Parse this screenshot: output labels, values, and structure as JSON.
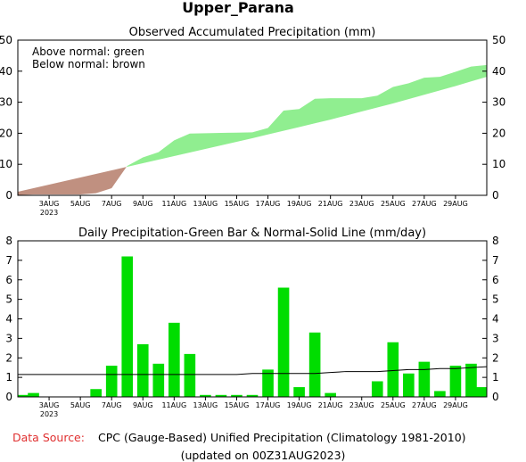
{
  "page_title": "Upper_Parana",
  "footer": {
    "source_label": "Data Source:",
    "source_text": "CPC (Gauge-Based) Unified Precipitation (Climatology 1981-2010)",
    "updated": "(updated on 00Z31AUG2023)",
    "source_label_color": "#e03030"
  },
  "colors": {
    "above_normal": "#90ee90",
    "below_normal": "#c09080",
    "bar": "#00dd00",
    "normal_line": "#000000"
  },
  "chart_data": [
    {
      "type": "area",
      "title": "Observed Accumulated Precipitation (mm)",
      "legend": [
        "Above normal: green",
        "Below normal: brown"
      ],
      "legend_position": "top-left",
      "ylim": [
        0,
        50
      ],
      "yticks": [
        0,
        10,
        20,
        30,
        40,
        50
      ],
      "xlim": [
        1,
        31
      ],
      "xticks": [
        {
          "x": 3,
          "label": "3AUG"
        },
        {
          "x": 5,
          "label": "5AUG"
        },
        {
          "x": 7,
          "label": "7AUG"
        },
        {
          "x": 9,
          "label": "9AUG"
        },
        {
          "x": 11,
          "label": "11AUG"
        },
        {
          "x": 13,
          "label": "13AUG"
        },
        {
          "x": 15,
          "label": "15AUG"
        },
        {
          "x": 17,
          "label": "17AUG"
        },
        {
          "x": 19,
          "label": "19AUG"
        },
        {
          "x": 21,
          "label": "21AUG"
        },
        {
          "x": 23,
          "label": "23AUG"
        },
        {
          "x": 25,
          "label": "25AUG"
        },
        {
          "x": 27,
          "label": "27AUG"
        },
        {
          "x": 29,
          "label": "29AUG"
        }
      ],
      "year_label": "2023",
      "x": [
        1,
        2,
        3,
        4,
        5,
        6,
        7,
        8,
        9,
        10,
        11,
        12,
        13,
        14,
        15,
        16,
        17,
        18,
        19,
        20,
        21,
        22,
        23,
        24,
        25,
        26,
        27,
        28,
        29,
        30,
        31
      ],
      "observed": [
        0.1,
        0.3,
        0.3,
        0.3,
        0.3,
        0.7,
        2.3,
        9.5,
        12.2,
        13.9,
        17.7,
        19.9,
        20.0,
        20.1,
        20.2,
        20.3,
        21.7,
        27.3,
        27.8,
        31.1,
        31.3,
        31.3,
        31.3,
        32.1,
        34.9,
        36.1,
        37.9,
        38.2,
        39.8,
        41.5,
        42.0
      ],
      "normal": [
        1.15,
        2.3,
        3.45,
        4.6,
        5.75,
        6.9,
        8.05,
        9.2,
        10.35,
        11.5,
        12.65,
        13.8,
        14.95,
        16.1,
        17.25,
        18.4,
        19.6,
        20.8,
        22.0,
        23.2,
        24.4,
        25.7,
        27.0,
        28.3,
        29.6,
        31.0,
        32.4,
        33.8,
        35.2,
        36.7,
        38.2
      ]
    },
    {
      "type": "bar",
      "title": "Daily Precipitation-Green Bar & Normal-Solid Line (mm/day)",
      "ylim": [
        0,
        8
      ],
      "yticks": [
        0,
        1,
        2,
        3,
        4,
        5,
        6,
        7,
        8
      ],
      "xlim": [
        1,
        31
      ],
      "x": [
        1,
        2,
        3,
        4,
        5,
        6,
        7,
        8,
        9,
        10,
        11,
        12,
        13,
        14,
        15,
        16,
        17,
        18,
        19,
        20,
        21,
        22,
        23,
        24,
        25,
        26,
        27,
        28,
        29,
        30,
        31
      ],
      "values": [
        0.1,
        0.2,
        0.0,
        0.0,
        0.0,
        0.4,
        1.6,
        7.2,
        2.7,
        1.7,
        3.8,
        2.2,
        0.1,
        0.1,
        0.1,
        0.1,
        1.4,
        5.6,
        0.5,
        3.3,
        0.2,
        0.0,
        0.0,
        0.8,
        2.8,
        1.2,
        1.8,
        0.3,
        1.6,
        1.7,
        0.5
      ],
      "normal": [
        1.15,
        1.15,
        1.15,
        1.15,
        1.15,
        1.15,
        1.15,
        1.15,
        1.15,
        1.15,
        1.15,
        1.15,
        1.15,
        1.15,
        1.15,
        1.2,
        1.2,
        1.2,
        1.2,
        1.2,
        1.25,
        1.3,
        1.3,
        1.3,
        1.35,
        1.4,
        1.4,
        1.45,
        1.45,
        1.5,
        1.55
      ]
    }
  ]
}
